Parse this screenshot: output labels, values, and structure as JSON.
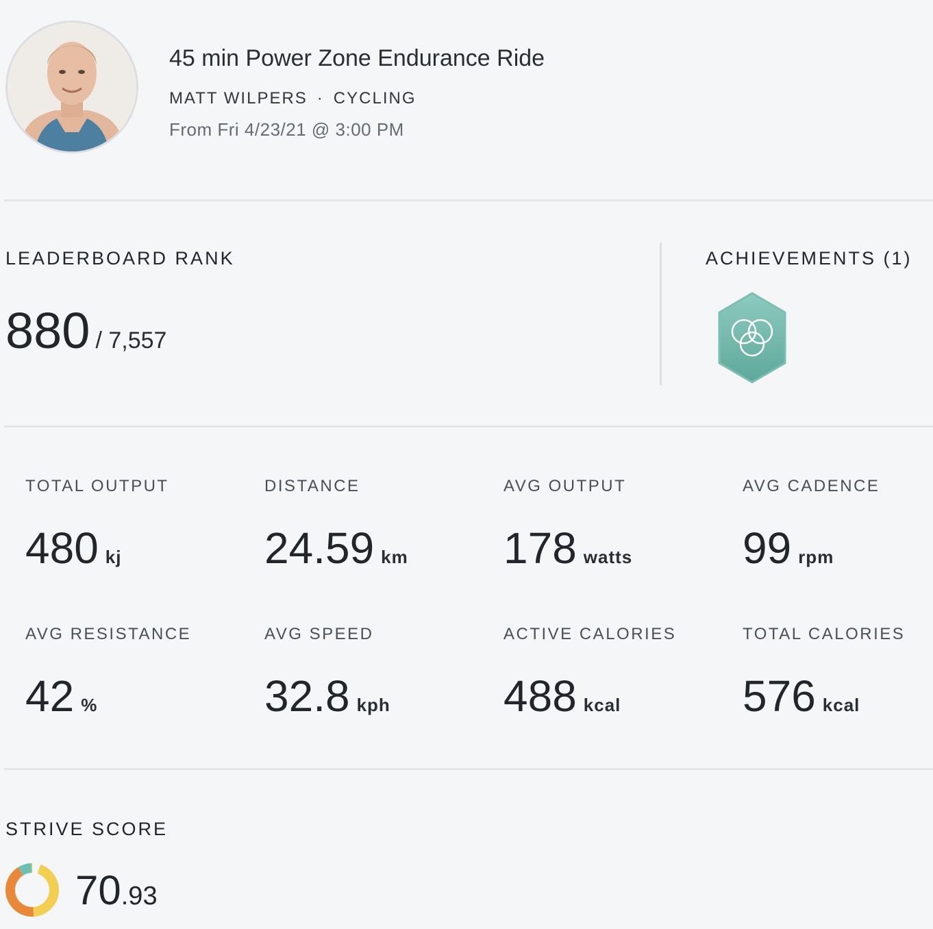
{
  "header": {
    "class_title": "45 min Power Zone Endurance Ride",
    "instructor": "MATT WILPERS",
    "separator": "·",
    "discipline": "CYCLING",
    "date": "From Fri 4/23/21 @ 3:00 PM"
  },
  "leaderboard": {
    "label": "LEADERBOARD RANK",
    "rank": "880",
    "total": "/ 7,557"
  },
  "achievements": {
    "label": "ACHIEVEMENTS (1)",
    "badge_icon": "achievement-badge-icon",
    "badge_color": "#6fb8ab"
  },
  "metrics": [
    {
      "label": "TOTAL OUTPUT",
      "value": "480",
      "unit": "kj"
    },
    {
      "label": "DISTANCE",
      "value": "24.59",
      "unit": "km"
    },
    {
      "label": "AVG OUTPUT",
      "value": "178",
      "unit": "watts"
    },
    {
      "label": "AVG CADENCE",
      "value": "99",
      "unit": "rpm"
    },
    {
      "label": "AVG RESISTANCE",
      "value": "42",
      "unit": "%"
    },
    {
      "label": "AVG SPEED",
      "value": "32.8",
      "unit": "kph"
    },
    {
      "label": "ACTIVE CALORIES",
      "value": "488",
      "unit": "kcal"
    },
    {
      "label": "TOTAL CALORIES",
      "value": "576",
      "unit": "kcal"
    }
  ],
  "strive": {
    "label": "STRIVE SCORE",
    "value_int": "70",
    "value_dec": ".93",
    "zone_colors": [
      "#e8893a",
      "#f2cf52",
      "#a9cf6e",
      "#6fbfb4"
    ]
  }
}
